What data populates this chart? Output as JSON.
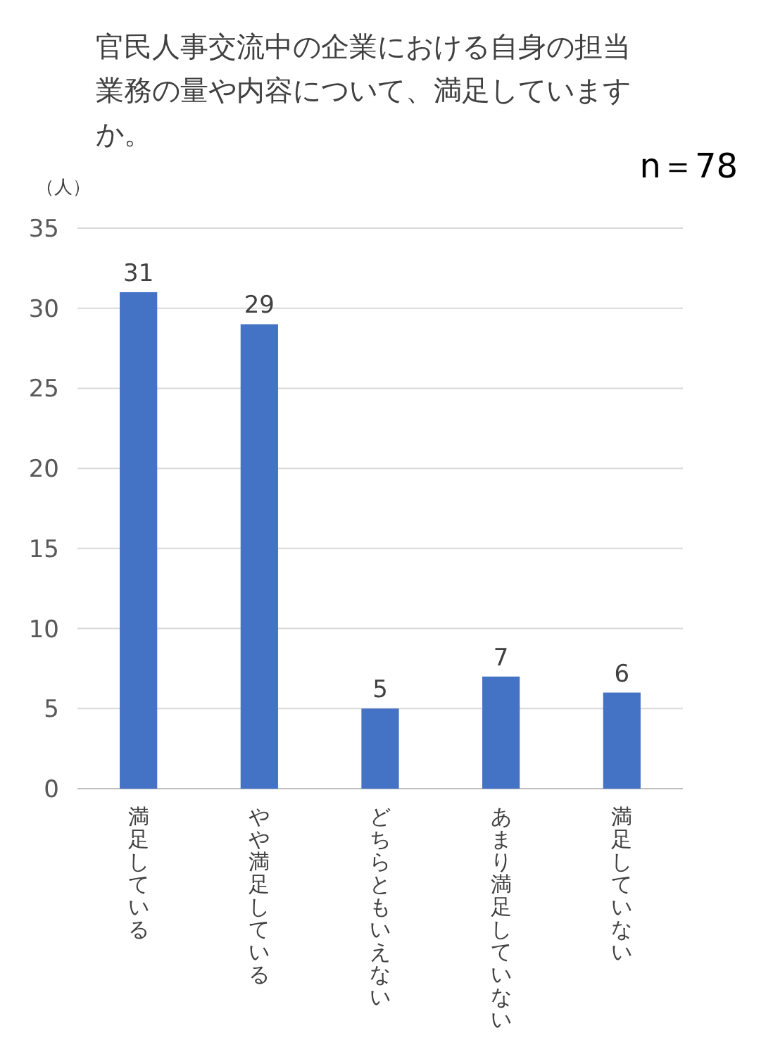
{
  "chart_data": {
    "type": "bar",
    "title": "官民人事交流中の企業における自身の担当業務の量や内容について、満足していますか。",
    "ylabel": "（人）",
    "annotations": [
      "n＝78"
    ],
    "categories": [
      "満足している",
      "やや満足している",
      "どちらともいえない",
      "あまり満足していない",
      "満足していない"
    ],
    "values": [
      31,
      29,
      5,
      7,
      6
    ],
    "color": "#4472c4",
    "data_labels": true,
    "ylim": [
      0,
      35
    ],
    "yticks": [
      0,
      5,
      10,
      15,
      20,
      25,
      30,
      35
    ],
    "grid": "y"
  }
}
